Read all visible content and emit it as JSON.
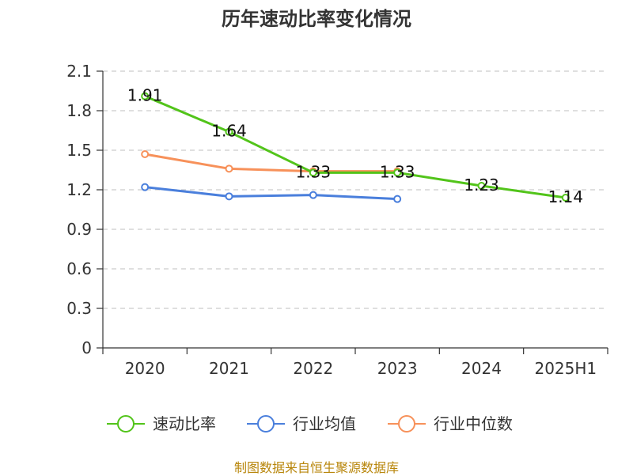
{
  "chart_data": {
    "type": "line",
    "title": "历年速动比率变化情况",
    "categories": [
      "2020",
      "2021",
      "2022",
      "2023",
      "2024",
      "2025H1"
    ],
    "y_ticks": [
      "0",
      "0.3",
      "0.6",
      "0.9",
      "1.2",
      "1.5",
      "1.8",
      "2.1"
    ],
    "ylim": [
      0,
      2.1
    ],
    "grid": true,
    "legend_position": "bottom",
    "series": [
      {
        "name": "速动比率",
        "color": "#52c41a",
        "values": [
          1.91,
          1.64,
          1.33,
          1.33,
          1.23,
          1.14
        ],
        "labels": [
          "1.91",
          "1.64",
          "1.33",
          "1.33",
          "1.23",
          "1.14"
        ],
        "show_labels": true
      },
      {
        "name": "行业均值",
        "color": "#4a7fdc",
        "values": [
          1.22,
          1.15,
          1.16,
          1.13,
          null,
          null
        ],
        "show_labels": false
      },
      {
        "name": "行业中位数",
        "color": "#f7915a",
        "values": [
          1.47,
          1.36,
          1.34,
          1.34,
          null,
          null
        ],
        "show_labels": false
      }
    ]
  },
  "source": "制图数据来自恒生聚源数据库"
}
